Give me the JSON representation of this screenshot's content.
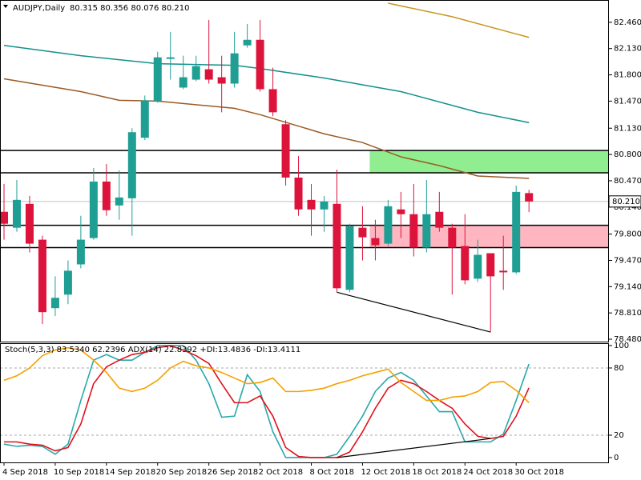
{
  "chart_data": [
    {
      "type": "candlestick",
      "title": "AUDJPY,Daily",
      "subtitle": "80.315 80.356 80.076 80.210",
      "categories": [
        "4 Sep 2018",
        null,
        null,
        null,
        "10 Sep 2018",
        null,
        null,
        null,
        "14 Sep 2018",
        null,
        null,
        null,
        "20 Sep 2018",
        null,
        null,
        null,
        "26 Sep 2018",
        null,
        null,
        null,
        "2 Oct 2018",
        null,
        null,
        null,
        "8 Oct 2018",
        null,
        null,
        null,
        "12 Oct 2018",
        null,
        null,
        null,
        "18 Oct 2018",
        null,
        null,
        null,
        "24 Oct 2018",
        null,
        null,
        null,
        "30 Oct 2018",
        null
      ],
      "open": [
        80.08,
        79.88,
        80.18,
        79.73,
        78.87,
        79.04,
        79.42,
        79.75,
        80.46,
        80.16,
        80.25,
        81.01,
        81.47,
        82.0,
        81.64,
        81.74,
        81.87,
        81.77,
        81.69,
        82.17,
        82.24,
        81.62,
        81.18,
        80.51,
        80.23,
        80.11,
        80.18,
        79.1,
        79.88,
        79.75,
        79.68,
        80.11,
        80.05,
        79.63,
        80.08,
        79.88,
        79.65,
        79.24,
        79.56,
        79.34,
        79.32,
        80.315
      ],
      "high": [
        80.43,
        80.48,
        80.28,
        79.78,
        79.27,
        79.47,
        80.03,
        80.63,
        80.68,
        80.6,
        81.13,
        81.54,
        82.09,
        82.34,
        82.04,
        82.04,
        82.49,
        82.04,
        82.34,
        82.44,
        82.49,
        81.89,
        81.23,
        80.78,
        80.43,
        80.28,
        80.61,
        79.93,
        80.15,
        79.98,
        80.23,
        80.33,
        80.43,
        80.48,
        80.33,
        79.93,
        80.05,
        79.73,
        79.56,
        79.78,
        80.41,
        80.356
      ],
      "low": [
        79.73,
        79.83,
        79.57,
        78.67,
        78.77,
        78.92,
        79.37,
        79.73,
        80.03,
        79.98,
        79.78,
        80.98,
        81.45,
        81.74,
        81.62,
        81.72,
        81.69,
        81.33,
        81.64,
        82.14,
        81.59,
        81.28,
        80.41,
        80.03,
        79.78,
        79.83,
        79.07,
        79.07,
        79.47,
        79.47,
        79.65,
        79.75,
        79.52,
        79.57,
        79.83,
        79.04,
        79.17,
        79.2,
        78.57,
        79.1,
        79.3,
        80.076
      ],
      "close": [
        79.93,
        80.23,
        79.68,
        78.82,
        79.0,
        79.34,
        79.73,
        80.46,
        80.1,
        80.26,
        81.08,
        81.48,
        82.02,
        82.02,
        81.77,
        81.91,
        81.74,
        81.69,
        82.07,
        82.24,
        81.62,
        81.33,
        80.51,
        80.11,
        80.11,
        80.21,
        79.12,
        79.9,
        79.76,
        79.66,
        80.15,
        80.05,
        79.63,
        80.05,
        79.88,
        79.63,
        79.22,
        79.54,
        79.27,
        79.32,
        80.33,
        80.21
      ],
      "up_color": "#1f9e94",
      "down_color": "#dc143c",
      "series": [
        {
          "color": "#12908c",
          "x": [
            0,
            6,
            12,
            18,
            20,
            25,
            31,
            37,
            41
          ],
          "values": [
            82.17,
            82.04,
            81.94,
            81.92,
            81.88,
            81.76,
            81.59,
            81.33,
            81.2
          ]
        },
        {
          "color": "#9a5a24",
          "x": [
            0,
            6,
            9,
            12,
            18,
            20,
            25,
            28,
            31,
            34,
            37,
            41
          ],
          "values": [
            81.75,
            81.59,
            81.48,
            81.47,
            81.38,
            81.3,
            81.06,
            80.95,
            80.77,
            80.66,
            80.53,
            80.5
          ]
        },
        {
          "color": "#c8961e",
          "x": [
            30,
            35,
            41
          ],
          "values": [
            82.7,
            82.53,
            82.27
          ]
        }
      ],
      "levels": [
        80.85,
        80.57,
        79.91,
        79.63
      ],
      "zones": [
        {
          "from": 80.57,
          "to": 80.85,
          "start": 29,
          "color": "#90ee90"
        },
        {
          "from": 79.63,
          "to": 79.91,
          "start": 29,
          "color": "#ffb6c1"
        }
      ],
      "trendline": {
        "from": [
          26,
          79.07
        ],
        "to": [
          38,
          78.57
        ]
      },
      "price_line": {
        "value": 80.21,
        "label": "80.210"
      },
      "ylim": [
        78.44,
        82.74
      ],
      "yticks": [
        {
          "value": 82.46,
          "label": "82.460"
        },
        {
          "value": 82.13,
          "label": "82.130"
        },
        {
          "value": 81.8,
          "label": "81.800"
        },
        {
          "value": 81.47,
          "label": "81.470"
        },
        {
          "value": 81.13,
          "label": "81.130"
        },
        {
          "value": 80.8,
          "label": "80.800"
        },
        {
          "value": 80.47,
          "label": "80.470"
        },
        {
          "value": 80.14,
          "label": "80.140"
        },
        {
          "value": 79.8,
          "label": "79.800"
        },
        {
          "value": 79.47,
          "label": "79.470"
        },
        {
          "value": 79.14,
          "label": "79.140"
        },
        {
          "value": 78.81,
          "label": "78.810"
        },
        {
          "value": 78.48,
          "label": "78.480"
        }
      ]
    },
    {
      "type": "line",
      "title": "Stoch(5,3,3) 83.5340 62.2396 ADX(14) 22.8392 +DI:13.4836 -DI:13.4111",
      "series": [
        {
          "color": "#2aa8a8",
          "values": [
            12,
            10,
            11,
            10,
            3,
            12,
            51,
            87,
            92,
            87,
            87,
            94,
            100,
            100,
            100,
            87,
            66,
            36,
            37,
            74,
            59,
            23,
            0,
            0,
            0,
            0,
            3,
            19,
            37,
            59,
            71,
            76,
            69,
            55,
            41,
            41,
            14,
            14,
            14,
            21,
            51,
            83.534
          ]
        },
        {
          "color": "#e0101a",
          "values": [
            14,
            14,
            12,
            11,
            6,
            9,
            30,
            66,
            81,
            87,
            92,
            94,
            98,
            100,
            96,
            91,
            84,
            66,
            49,
            49,
            55,
            37,
            9,
            1,
            0,
            0,
            0,
            5,
            23,
            44,
            62,
            69,
            66,
            59,
            51,
            44,
            30,
            19,
            17,
            19,
            37,
            62.2396
          ]
        },
        {
          "color": "#f5a000",
          "values": [
            69,
            73,
            80,
            91,
            96,
            98,
            96,
            87,
            76,
            62,
            59,
            62,
            69,
            80,
            86,
            82,
            80,
            76,
            71,
            66,
            67,
            71,
            59,
            59,
            60,
            62,
            66,
            69,
            73,
            76,
            79,
            67,
            59,
            51,
            51,
            54,
            55,
            59,
            67,
            68,
            60,
            49
          ]
        }
      ],
      "trendline": {
        "from": [
          26,
          0
        ],
        "to": [
          38,
          17
        ]
      },
      "ylim": [
        -4.3,
        101.4
      ],
      "yticks": [
        100,
        80,
        20,
        0
      ],
      "grid_levels": [
        80,
        20
      ]
    }
  ]
}
